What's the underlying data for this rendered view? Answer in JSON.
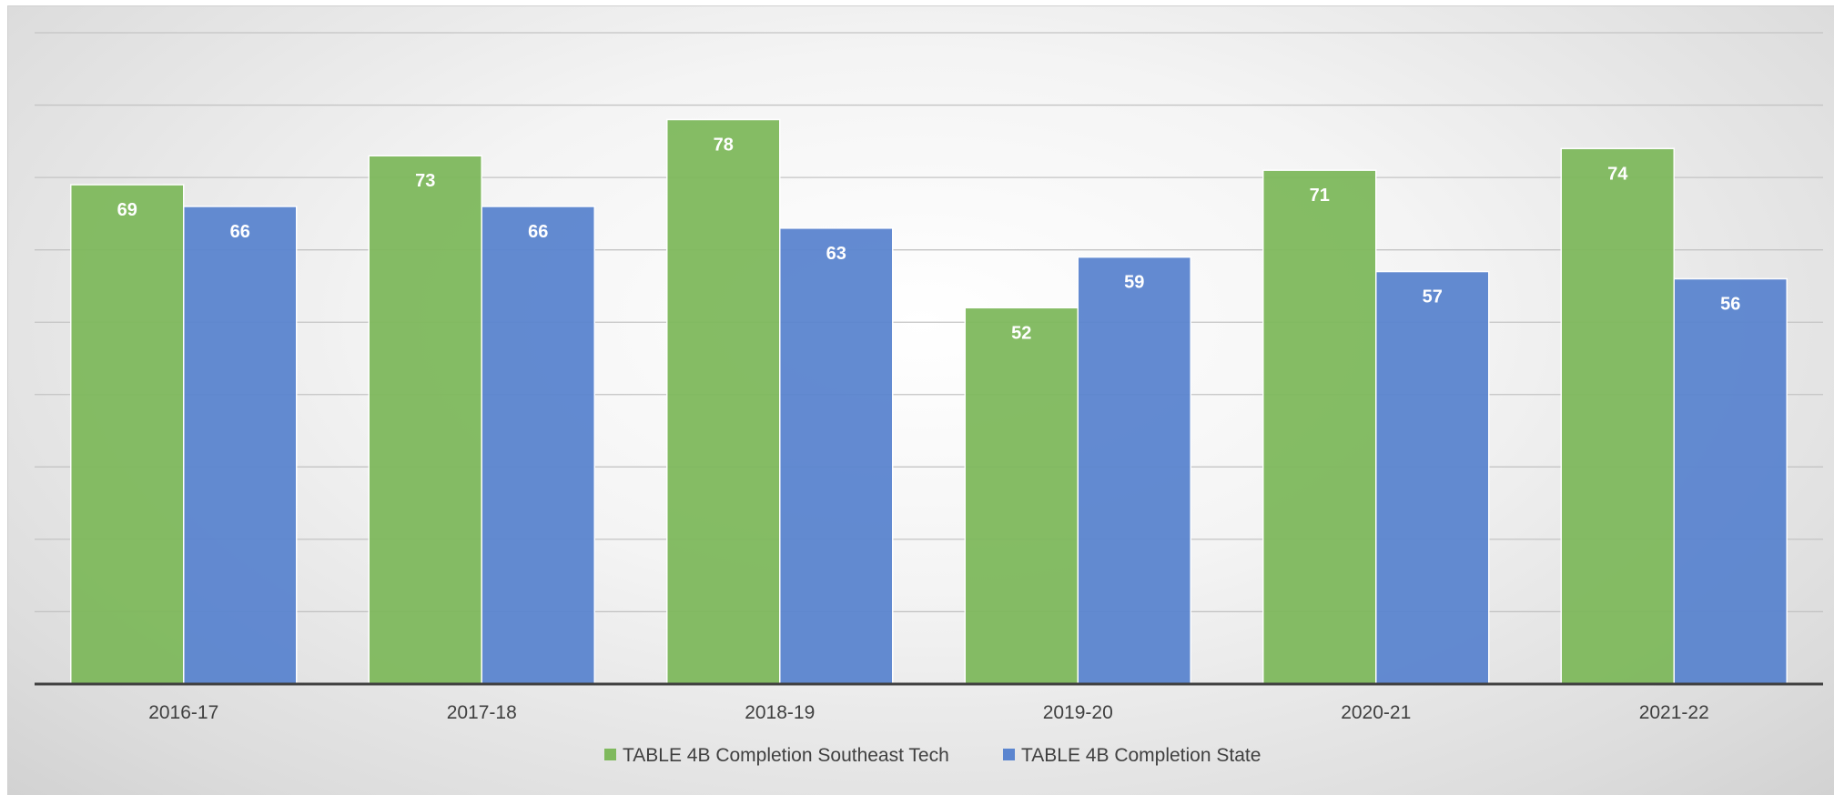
{
  "chart_data": {
    "type": "bar",
    "title": "",
    "xlabel": "",
    "ylabel": "",
    "categories": [
      "2016-17",
      "2017-18",
      "2018-19",
      "2019-20",
      "2020-21",
      "2021-22"
    ],
    "series": [
      {
        "name": "TABLE 4B Completion Southeast Tech",
        "values": [
          69,
          73,
          78,
          52,
          71,
          74
        ],
        "color": "#7fb95d"
      },
      {
        "name": "TABLE 4B Completion State",
        "values": [
          66,
          66,
          63,
          59,
          57,
          56
        ],
        "color": "#5b85cf"
      }
    ],
    "ylim": [
      0,
      90
    ],
    "grid": true,
    "data_labels": true,
    "legend_position": "bottom"
  }
}
